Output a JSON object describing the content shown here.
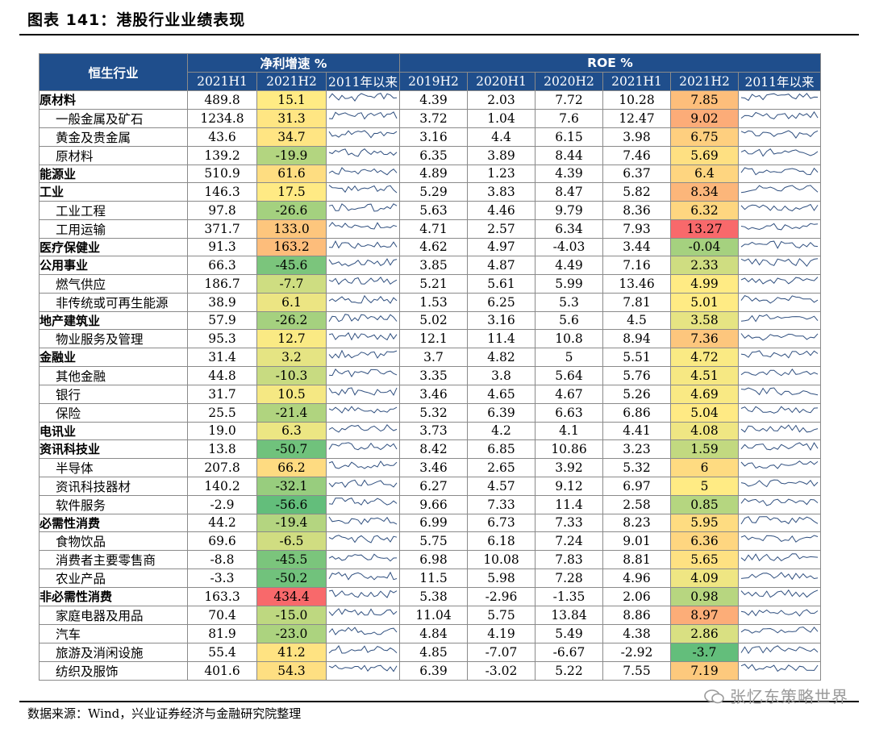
{
  "title": "图表 141：港股行业业绩表现",
  "source": "数据来源：Wind，兴业证券经济与金融研究院整理",
  "watermark": "张忆东策略世界",
  "header": {
    "industry": "恒生行业",
    "net_profit_group": "净利增速 %",
    "roe_group": "ROE %",
    "np_cols": [
      "2021H1",
      "2021H2",
      "2011年以来"
    ],
    "roe_cols": [
      "2019H2",
      "2020H1",
      "2020H2",
      "2021H1",
      "2021H2",
      "2011年以来"
    ]
  },
  "rows": [
    {
      "name": "原材料",
      "level": "top",
      "np": [
        "489.8",
        "15.1"
      ],
      "roe": [
        "4.39",
        "2.03",
        "7.72",
        "10.28",
        "7.85"
      ]
    },
    {
      "name": "一般金属及矿石",
      "level": "child",
      "np": [
        "1234.8",
        "31.3"
      ],
      "roe": [
        "3.72",
        "1.04",
        "7.6",
        "12.47",
        "9.02"
      ]
    },
    {
      "name": "黄金及贵金属",
      "level": "child",
      "np": [
        "43.6",
        "34.7"
      ],
      "roe": [
        "3.16",
        "4.4",
        "6.15",
        "3.98",
        "6.75"
      ]
    },
    {
      "name": "原材料",
      "level": "child",
      "np": [
        "139.2",
        "-19.9"
      ],
      "roe": [
        "6.35",
        "3.89",
        "8.44",
        "7.46",
        "5.69"
      ]
    },
    {
      "name": "能源业",
      "level": "top",
      "np": [
        "510.9",
        "61.6"
      ],
      "roe": [
        "4.89",
        "1.23",
        "4.39",
        "6.37",
        "6.4"
      ]
    },
    {
      "name": "工业",
      "level": "top",
      "np": [
        "146.3",
        "17.5"
      ],
      "roe": [
        "5.29",
        "3.83",
        "8.47",
        "5.82",
        "8.34"
      ]
    },
    {
      "name": "工业工程",
      "level": "child",
      "np": [
        "97.8",
        "-26.6"
      ],
      "roe": [
        "5.63",
        "4.46",
        "9.79",
        "8.36",
        "6.32"
      ]
    },
    {
      "name": "工用运输",
      "level": "child",
      "np": [
        "371.7",
        "133.0"
      ],
      "roe": [
        "4.71",
        "2.57",
        "6.34",
        "7.93",
        "13.27"
      ]
    },
    {
      "name": "医疗保健业",
      "level": "top",
      "np": [
        "91.3",
        "163.2"
      ],
      "roe": [
        "4.62",
        "4.97",
        "-4.03",
        "3.44",
        "-0.04"
      ]
    },
    {
      "name": "公用事业",
      "level": "top",
      "np": [
        "66.3",
        "-45.6"
      ],
      "roe": [
        "3.85",
        "4.87",
        "4.49",
        "7.16",
        "2.33"
      ]
    },
    {
      "name": "燃气供应",
      "level": "child",
      "np": [
        "186.7",
        "-7.7"
      ],
      "roe": [
        "5.21",
        "5.61",
        "5.99",
        "13.46",
        "4.99"
      ]
    },
    {
      "name": "非传统或可再生能源",
      "level": "child",
      "np": [
        "38.9",
        "6.1"
      ],
      "roe": [
        "1.53",
        "6.25",
        "5.3",
        "7.81",
        "5.01"
      ]
    },
    {
      "name": "地产建筑业",
      "level": "top",
      "np": [
        "57.9",
        "-26.2"
      ],
      "roe": [
        "5.02",
        "3.16",
        "5.6",
        "4.5",
        "3.58"
      ]
    },
    {
      "name": "物业服务及管理",
      "level": "child",
      "np": [
        "95.3",
        "12.7"
      ],
      "roe": [
        "12.1",
        "11.4",
        "10.8",
        "8.94",
        "7.36"
      ]
    },
    {
      "name": "金融业",
      "level": "top",
      "np": [
        "31.4",
        "3.2"
      ],
      "roe": [
        "3.7",
        "4.82",
        "5",
        "5.51",
        "4.72"
      ]
    },
    {
      "name": "其他金融",
      "level": "child",
      "np": [
        "44.8",
        "-10.3"
      ],
      "roe": [
        "3.35",
        "3.8",
        "5.64",
        "5.76",
        "4.51"
      ]
    },
    {
      "name": "银行",
      "level": "child",
      "np": [
        "31.7",
        "10.5"
      ],
      "roe": [
        "3.46",
        "4.65",
        "4.67",
        "5.26",
        "4.69"
      ]
    },
    {
      "name": "保险",
      "level": "child",
      "np": [
        "25.5",
        "-21.4"
      ],
      "roe": [
        "5.32",
        "6.39",
        "6.63",
        "6.86",
        "5.04"
      ]
    },
    {
      "name": "电讯业",
      "level": "top",
      "np": [
        "19.0",
        "6.3"
      ],
      "roe": [
        "3.73",
        "4.2",
        "4.1",
        "4.41",
        "4.08"
      ]
    },
    {
      "name": "资讯科技业",
      "level": "top",
      "np": [
        "13.8",
        "-50.7"
      ],
      "roe": [
        "8.42",
        "6.85",
        "10.86",
        "3.23",
        "1.59"
      ]
    },
    {
      "name": "半导体",
      "level": "child",
      "np": [
        "207.8",
        "66.2"
      ],
      "roe": [
        "3.46",
        "2.65",
        "3.92",
        "5.32",
        "6"
      ]
    },
    {
      "name": "资讯科技器材",
      "level": "child",
      "np": [
        "140.2",
        "-32.1"
      ],
      "roe": [
        "6.27",
        "4.57",
        "9.12",
        "6.97",
        "5"
      ]
    },
    {
      "name": "软件服务",
      "level": "child",
      "np": [
        "-2.9",
        "-56.6"
      ],
      "roe": [
        "9.66",
        "7.33",
        "11.4",
        "2.58",
        "0.85"
      ]
    },
    {
      "name": "必需性消费",
      "level": "top",
      "np": [
        "44.2",
        "-19.4"
      ],
      "roe": [
        "6.99",
        "6.73",
        "7.33",
        "8.23",
        "5.95"
      ]
    },
    {
      "name": "食物饮品",
      "level": "child",
      "np": [
        "69.6",
        "-6.5"
      ],
      "roe": [
        "5.75",
        "6.18",
        "7.24",
        "9.01",
        "6.36"
      ]
    },
    {
      "name": "消费者主要零售商",
      "level": "child",
      "np": [
        "-8.8",
        "-45.5"
      ],
      "roe": [
        "6.98",
        "10.08",
        "7.83",
        "8.81",
        "5.65"
      ]
    },
    {
      "name": "农业产品",
      "level": "child",
      "np": [
        "-3.3",
        "-50.2"
      ],
      "roe": [
        "11.5",
        "5.98",
        "7.28",
        "4.96",
        "4.09"
      ]
    },
    {
      "name": "非必需性消费",
      "level": "top",
      "np": [
        "163.3",
        "434.4"
      ],
      "roe": [
        "5.38",
        "-2.96",
        "-1.35",
        "2.06",
        "0.98"
      ]
    },
    {
      "name": "家庭电器及用品",
      "level": "child",
      "np": [
        "70.4",
        "-15.0"
      ],
      "roe": [
        "11.04",
        "5.75",
        "13.84",
        "8.86",
        "8.97"
      ]
    },
    {
      "name": "汽车",
      "level": "child",
      "np": [
        "81.9",
        "-23.0"
      ],
      "roe": [
        "4.84",
        "4.19",
        "5.49",
        "4.38",
        "2.86"
      ]
    },
    {
      "name": "旅游及消闲设施",
      "level": "child",
      "np": [
        "55.4",
        "41.2"
      ],
      "roe": [
        "4.85",
        "-7.07",
        "-6.67",
        "-2.92",
        "-3.7"
      ]
    },
    {
      "name": "纺织及服饰",
      "level": "child",
      "np": [
        "401.6",
        "54.3"
      ],
      "roe": [
        "6.39",
        "-3.02",
        "5.22",
        "7.55",
        "7.19"
      ]
    }
  ],
  "heat_colors": {
    "low": "#63be7b",
    "mid": "#ffeb84",
    "high": "#f8696b"
  },
  "spark_color": "#2f4f7f"
}
